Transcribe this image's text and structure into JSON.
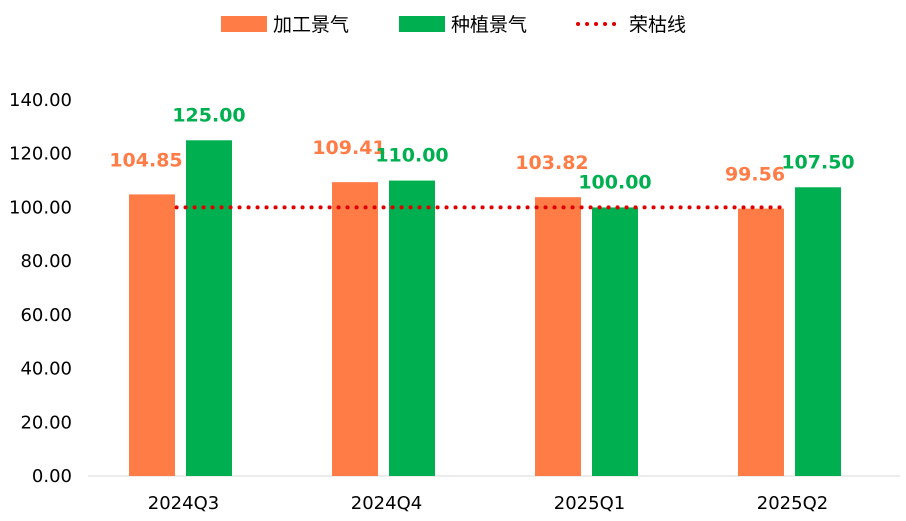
{
  "chart_data": {
    "type": "bar",
    "categories": [
      "2024Q3",
      "2024Q4",
      "2025Q1",
      "2025Q2"
    ],
    "series": [
      {
        "name": "加工景气",
        "color": "#FF7C47",
        "values": [
          104.85,
          109.41,
          103.82,
          99.56
        ],
        "labels": [
          "104.85",
          "109.41",
          "103.82",
          "99.56"
        ]
      },
      {
        "name": "种植景气",
        "color": "#00B050",
        "values": [
          125.0,
          110.0,
          100.0,
          107.5
        ],
        "labels": [
          "125.00",
          "110.00",
          "100.00",
          "107.50"
        ]
      }
    ],
    "reference_line": {
      "name": "荣枯线",
      "value": 100,
      "color": "#E00000",
      "style": "dotted"
    },
    "ylim": [
      0,
      140
    ],
    "yticks": [
      "0.00",
      "20.00",
      "40.00",
      "60.00",
      "80.00",
      "100.00",
      "120.00",
      "140.00"
    ],
    "ytick_values": [
      0,
      20,
      40,
      60,
      80,
      100,
      120,
      140
    ],
    "grid": false,
    "legend_position": "top-center"
  }
}
